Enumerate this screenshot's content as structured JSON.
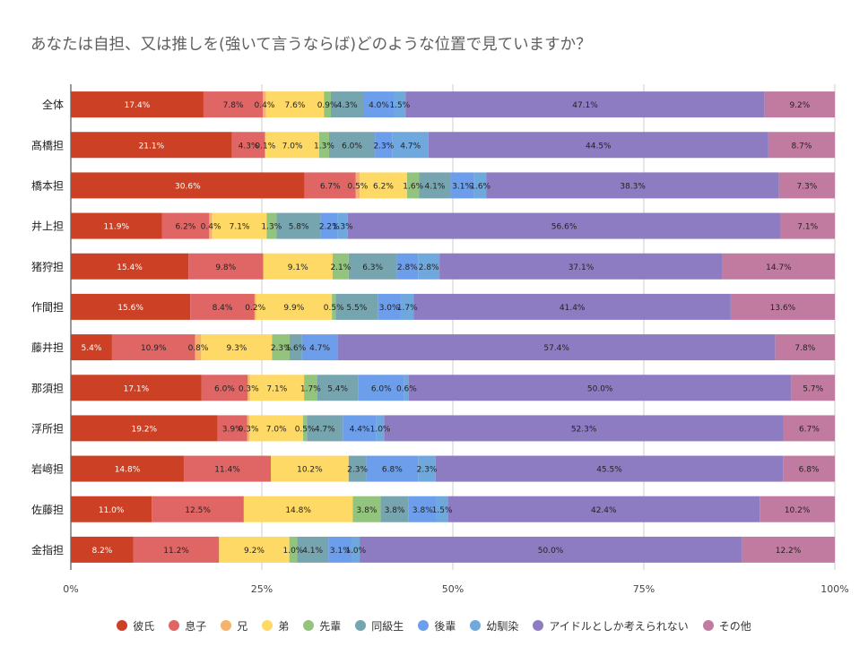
{
  "chart_data": {
    "type": "bar",
    "orientation": "horizontal",
    "stacked": true,
    "percent_stacked": true,
    "title": "あなたは自担、又は推しを(強いて言うならば)どのような位置で見ていますか？",
    "xlabel": "",
    "ylabel": "",
    "xlim": [
      0,
      100
    ],
    "x_ticks": [
      "0%",
      "25%",
      "50%",
      "75%",
      "100%"
    ],
    "grid": true,
    "legend_position": "bottom",
    "categories": [
      "全体",
      "髙橋担",
      "橋本担",
      "井上担",
      "猪狩担",
      "作間担",
      "藤井担",
      "那須担",
      "浮所担",
      "岩﨑担",
      "佐藤担",
      "金指担"
    ],
    "series": [
      {
        "name": "彼氏",
        "color": "#cc4125",
        "label_color": "#ffffff",
        "values": [
          17.4,
          21.1,
          30.6,
          11.9,
          15.4,
          15.6,
          5.4,
          17.1,
          19.2,
          14.8,
          11.0,
          8.2
        ]
      },
      {
        "name": "息子",
        "color": "#e06666",
        "label_color": "#222222",
        "values": [
          7.8,
          4.3,
          6.7,
          6.2,
          9.8,
          8.4,
          10.9,
          6.0,
          3.9,
          11.4,
          12.5,
          11.2
        ]
      },
      {
        "name": "兄",
        "color": "#f6b26b",
        "label_color": "#222222",
        "values": [
          0.4,
          0.1,
          0.5,
          0.4,
          0,
          0.2,
          0.8,
          0.3,
          0.3,
          0,
          0,
          0
        ]
      },
      {
        "name": "弟",
        "color": "#ffd966",
        "label_color": "#222222",
        "values": [
          7.6,
          7.0,
          6.2,
          7.1,
          9.1,
          9.9,
          9.3,
          7.1,
          7.0,
          10.2,
          14.8,
          9.2
        ]
      },
      {
        "name": "先輩",
        "color": "#93c47d",
        "label_color": "#222222",
        "values": [
          0.9,
          1.3,
          1.6,
          1.3,
          2.1,
          0.5,
          2.3,
          1.7,
          0.5,
          0,
          3.8,
          1.0
        ]
      },
      {
        "name": "同級生",
        "color": "#76a5af",
        "label_color": "#222222",
        "values": [
          4.3,
          6.0,
          4.1,
          5.8,
          6.3,
          5.5,
          1.6,
          5.4,
          4.7,
          2.3,
          3.8,
          4.1
        ]
      },
      {
        "name": "後輩",
        "color": "#6d9eeb",
        "label_color": "#222222",
        "values": [
          4.0,
          2.3,
          3.1,
          2.2,
          2.8,
          3.0,
          4.7,
          6.0,
          4.4,
          6.8,
          3.8,
          3.1
        ]
      },
      {
        "name": "幼馴染",
        "color": "#6fa8dc",
        "label_color": "#222222",
        "values": [
          1.5,
          4.7,
          1.6,
          1.3,
          2.8,
          1.7,
          0,
          0.6,
          1.0,
          2.3,
          1.5,
          1.0
        ]
      },
      {
        "name": "アイドルとしか考えられない",
        "color": "#8e7cc3",
        "label_color": "#222222",
        "values": [
          47.1,
          44.5,
          38.3,
          56.6,
          37.1,
          41.4,
          57.4,
          50.0,
          52.3,
          45.5,
          42.4,
          50.0
        ]
      },
      {
        "name": "その他",
        "color": "#c27ba0",
        "label_color": "#222222",
        "values": [
          9.2,
          8.7,
          7.3,
          7.1,
          14.7,
          13.6,
          7.8,
          5.7,
          6.7,
          6.8,
          10.2,
          12.2
        ]
      }
    ]
  }
}
